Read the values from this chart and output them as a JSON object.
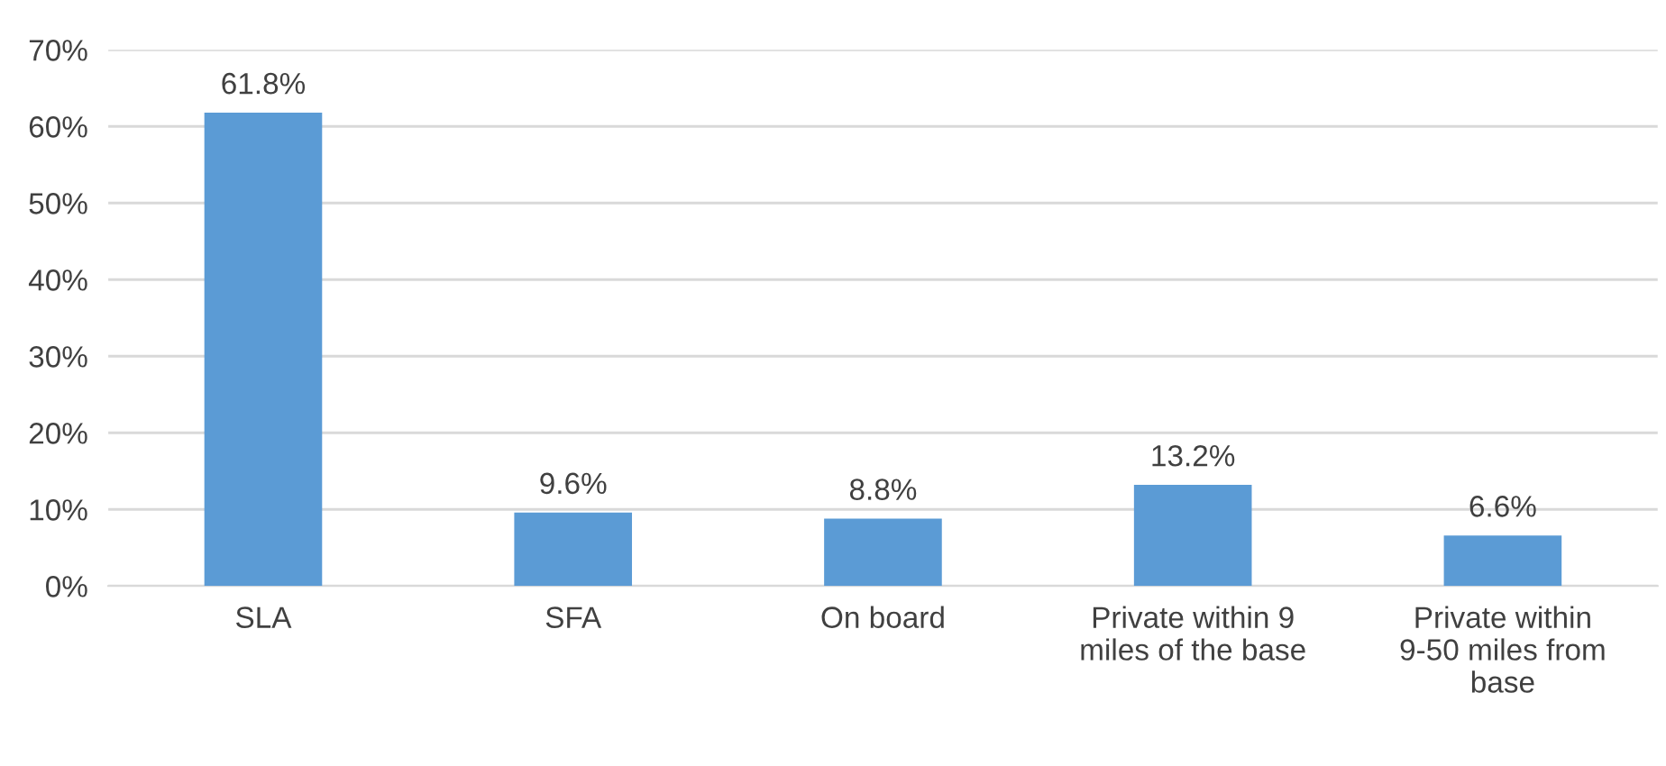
{
  "chart_data": {
    "type": "bar",
    "categories": [
      "SLA",
      "SFA",
      "On board",
      "Private within 9 miles of the base",
      "Private within 9-50 miles from base"
    ],
    "values": [
      61.8,
      9.6,
      8.8,
      13.2,
      6.6
    ],
    "value_labels": [
      "61.8%",
      "9.6%",
      "8.8%",
      "13.2%",
      "6.6%"
    ],
    "color": "#5b9bd5",
    "ylim": [
      0,
      70
    ],
    "yticks": [
      {
        "value": 0,
        "label": "0%"
      },
      {
        "value": 10,
        "label": "10%"
      },
      {
        "value": 20,
        "label": "20%"
      },
      {
        "value": 30,
        "label": "30%"
      },
      {
        "value": 40,
        "label": "40%"
      },
      {
        "value": 50,
        "label": "50%"
      },
      {
        "value": 60,
        "label": "60%"
      },
      {
        "value": 70,
        "label": "70%"
      }
    ],
    "grid": "y"
  }
}
